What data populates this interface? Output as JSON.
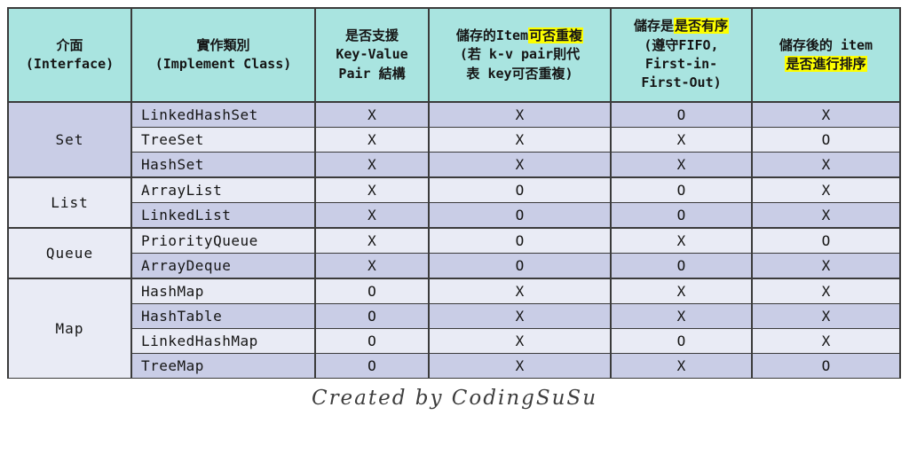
{
  "colors": {
    "header_bg": "#a9e4e0",
    "row_dark": "#c9cde6",
    "row_light": "#e9ebf5",
    "highlight": "#fdff00",
    "border": "#3b3b3b"
  },
  "table": {
    "columns": [
      {
        "lines": [
          [
            {
              "t": "介面"
            }
          ],
          [
            {
              "t": "(Interface)"
            }
          ]
        ]
      },
      {
        "lines": [
          [
            {
              "t": "實作類別"
            }
          ],
          [
            {
              "t": "(Implement Class)"
            }
          ]
        ]
      },
      {
        "lines": [
          [
            {
              "t": "是否支援"
            }
          ],
          [
            {
              "t": "Key-Value"
            }
          ],
          [
            {
              "t": "Pair 結構"
            }
          ]
        ]
      },
      {
        "lines": [
          [
            {
              "t": "儲存的Item"
            },
            {
              "t": "可否重複",
              "hl": true
            }
          ],
          [
            {
              "t": "(若 k-v pair則代"
            }
          ],
          [
            {
              "t": "表 key可否重複)"
            }
          ]
        ]
      },
      {
        "lines": [
          [
            {
              "t": "儲存是"
            },
            {
              "t": "是否有序",
              "hl": true
            }
          ],
          [
            {
              "t": "(遵守FIFO,"
            }
          ],
          [
            {
              "t": "First-in-"
            }
          ],
          [
            {
              "t": "First-Out)"
            }
          ]
        ]
      },
      {
        "lines": [
          [
            {
              "t": "儲存後的 item"
            }
          ],
          [
            {
              "t": "是否進行排序",
              "hl": true
            }
          ]
        ]
      }
    ],
    "groups": [
      {
        "interface": "Set",
        "rows": [
          {
            "class_name": "LinkedHashSet",
            "values": [
              "X",
              "X",
              "O",
              "X"
            ]
          },
          {
            "class_name": "TreeSet",
            "values": [
              "X",
              "X",
              "X",
              "O"
            ]
          },
          {
            "class_name": "HashSet",
            "values": [
              "X",
              "X",
              "X",
              "X"
            ]
          }
        ]
      },
      {
        "interface": "List",
        "rows": [
          {
            "class_name": "ArrayList",
            "values": [
              "X",
              "O",
              "O",
              "X"
            ]
          },
          {
            "class_name": "LinkedList",
            "values": [
              "X",
              "O",
              "O",
              "X"
            ]
          }
        ]
      },
      {
        "interface": "Queue",
        "rows": [
          {
            "class_name": "PriorityQueue",
            "values": [
              "X",
              "O",
              "X",
              "O"
            ]
          },
          {
            "class_name": "ArrayDeque",
            "values": [
              "X",
              "O",
              "O",
              "X"
            ]
          }
        ]
      },
      {
        "interface": "Map",
        "rows": [
          {
            "class_name": "HashMap",
            "values": [
              "O",
              "X",
              "X",
              "X"
            ]
          },
          {
            "class_name": "HashTable",
            "values": [
              "O",
              "X",
              "X",
              "X"
            ]
          },
          {
            "class_name": "LinkedHashMap",
            "values": [
              "O",
              "X",
              "O",
              "X"
            ]
          },
          {
            "class_name": "TreeMap",
            "values": [
              "O",
              "X",
              "X",
              "O"
            ]
          }
        ]
      }
    ]
  },
  "footer": {
    "credit": "Created by CodingSuSu"
  },
  "chart_data": {
    "type": "table",
    "title": "",
    "column_headers": [
      "介面 (Interface)",
      "實作類別 (Implement Class)",
      "是否支援 Key-Value Pair 結構",
      "儲存的Item可否重複 (若 k-v pair則代表 key可否重複)",
      "儲存是是否有序 (遵守FIFO, First-in-First-Out)",
      "儲存後的 item 是否進行排序"
    ],
    "rows": [
      [
        "Set",
        "LinkedHashSet",
        "X",
        "X",
        "O",
        "X"
      ],
      [
        "Set",
        "TreeSet",
        "X",
        "X",
        "X",
        "O"
      ],
      [
        "Set",
        "HashSet",
        "X",
        "X",
        "X",
        "X"
      ],
      [
        "List",
        "ArrayList",
        "X",
        "O",
        "O",
        "X"
      ],
      [
        "List",
        "LinkedList",
        "X",
        "O",
        "O",
        "X"
      ],
      [
        "Queue",
        "PriorityQueue",
        "X",
        "O",
        "X",
        "O"
      ],
      [
        "Queue",
        "ArrayDeque",
        "X",
        "O",
        "O",
        "X"
      ],
      [
        "Map",
        "HashMap",
        "O",
        "X",
        "X",
        "X"
      ],
      [
        "Map",
        "HashTable",
        "O",
        "X",
        "X",
        "X"
      ],
      [
        "Map",
        "LinkedHashMap",
        "O",
        "X",
        "O",
        "X"
      ],
      [
        "Map",
        "TreeMap",
        "O",
        "X",
        "X",
        "O"
      ]
    ],
    "annotations": [
      "Created by CodingSuSu"
    ],
    "highlighted_header_phrases": [
      "可否重複",
      "是否有序",
      "是否進行排序"
    ]
  }
}
